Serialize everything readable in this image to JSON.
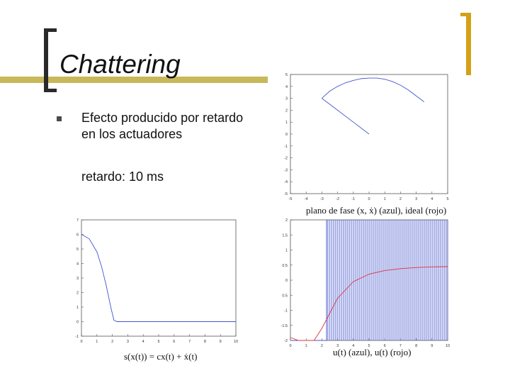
{
  "slide": {
    "title": "Chattering",
    "bullet_text": "Efecto producido por retardo en los actuadores",
    "delay_text": "retardo: 10 ms",
    "colors": {
      "accent": "#c8b85a",
      "bracket_dark": "#2a2a2a",
      "bracket_gold": "#d4a017",
      "blue": "#4455cc",
      "red": "#dd3344"
    }
  },
  "chart_data": [
    {
      "type": "line",
      "caption_text": "plano de fase (x, ẋ) (azul), ideal (rojo)",
      "xlim": [
        -5,
        5
      ],
      "ylim": [
        -5,
        5
      ],
      "xticks": [
        "-5",
        "-4",
        "-3",
        "-2",
        "-1",
        "0",
        "1",
        "2",
        "3",
        "4",
        "5"
      ],
      "yticks": [
        "5",
        "4",
        "3",
        "2",
        "1",
        "0",
        "-1",
        "-2",
        "-3",
        "-4",
        "-5"
      ],
      "series": [
        {
          "color": "#4455cc",
          "x": [
            -3.0,
            -2.5,
            -2.0,
            -1.5,
            -1.0,
            -0.5,
            0.0,
            0.5,
            1.0,
            1.5,
            2.0,
            2.5,
            3.0,
            3.5
          ],
          "y": [
            3.0,
            3.6,
            4.0,
            4.3,
            4.5,
            4.65,
            4.7,
            4.7,
            4.6,
            4.4,
            4.1,
            3.7,
            3.2,
            2.7
          ]
        },
        {
          "color": "#4455cc",
          "x": [
            -3.0,
            -2.0,
            -1.0,
            0.0
          ],
          "y": [
            3.0,
            2.0,
            1.0,
            0.0
          ]
        }
      ]
    },
    {
      "type": "line",
      "caption_text": "s(x(t)) = cx(t) + ẋ(t)",
      "xlim": [
        0,
        10
      ],
      "ylim": [
        -1,
        7
      ],
      "xticks": [
        "0",
        "1",
        "2",
        "3",
        "4",
        "5",
        "6",
        "7",
        "8",
        "9",
        "10"
      ],
      "yticks": [
        "7",
        "6",
        "5",
        "4",
        "3",
        "2",
        "1",
        "0",
        "-1"
      ],
      "series": [
        {
          "color": "#4455cc",
          "x": [
            0,
            0.5,
            1.0,
            1.3,
            1.6,
            1.9,
            2.1,
            2.3,
            3,
            4,
            5,
            6,
            7,
            8,
            9,
            10
          ],
          "y": [
            6.0,
            5.7,
            4.8,
            3.8,
            2.5,
            1.0,
            0.1,
            0.0,
            0.0,
            0.0,
            0.0,
            0.0,
            0.0,
            0.0,
            0.0,
            0.0
          ]
        }
      ]
    },
    {
      "type": "line",
      "caption_text": "u(t) (azul), u(t) (rojo)",
      "xlim": [
        0,
        10
      ],
      "ylim": [
        -2,
        2
      ],
      "xticks": [
        "0",
        "1",
        "2",
        "3",
        "4",
        "5",
        "6",
        "7",
        "8",
        "9",
        "10"
      ],
      "yticks": [
        "2",
        "1.5",
        "1",
        "0.5",
        "0",
        "0.5",
        "-1",
        "-1.5",
        "-2"
      ],
      "chatter_start": 2.3,
      "chatter_end": 10,
      "chatter_level": [
        -2,
        2
      ],
      "series": [
        {
          "color": "#dd3344",
          "x": [
            0,
            0.5,
            1.0,
            1.5,
            2.0,
            2.3,
            3.0,
            4.0,
            5.0,
            6.0,
            7.0,
            8.0,
            9.0,
            10.0
          ],
          "y": [
            -1.9,
            -2.0,
            -2.0,
            -2.0,
            -1.6,
            -1.3,
            -0.6,
            -0.05,
            0.2,
            0.32,
            0.38,
            0.42,
            0.44,
            0.45
          ]
        }
      ]
    }
  ]
}
